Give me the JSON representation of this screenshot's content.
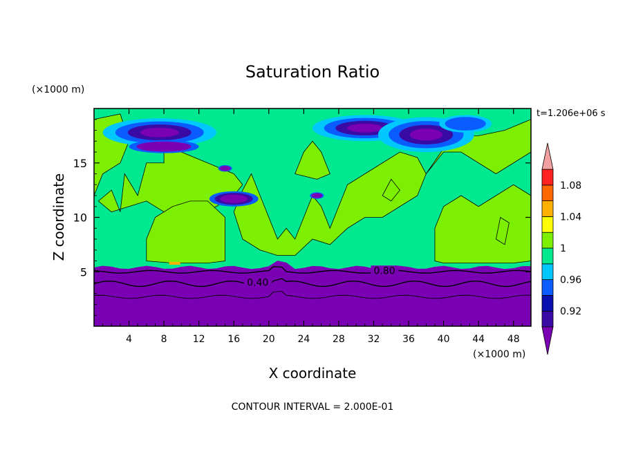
{
  "chart_data": {
    "type": "contour",
    "title": "Saturation Ratio",
    "time_label": "t=1.206e+06 s",
    "xlabel": "X coordinate",
    "ylabel": "Z coordinate",
    "x_unit": "(×1000 m)",
    "y_unit": "(×1000 m)",
    "xlim": [
      0,
      50
    ],
    "ylim": [
      0,
      20
    ],
    "x_ticks": [
      4,
      8,
      12,
      16,
      20,
      24,
      28,
      32,
      36,
      40,
      44,
      48
    ],
    "x_tick_labels": [
      "4",
      "8",
      "12",
      "16",
      "20",
      "24",
      "28",
      "32",
      "36",
      "40",
      "44",
      "48"
    ],
    "y_ticks": [
      5,
      10,
      15
    ],
    "y_tick_labels": [
      "5",
      "10",
      "15"
    ],
    "contour_labels": [
      {
        "text": "0.40",
        "x": 17.5,
        "y": 3.9
      },
      {
        "text": "0.80",
        "x": 32,
        "y": 5.0
      }
    ],
    "contour_interval_text": "CONTOUR INTERVAL = 2.000E-01",
    "colorbar": {
      "levels": [
        0.9,
        0.92,
        0.94,
        0.96,
        0.98,
        1.0,
        1.02,
        1.04,
        1.06,
        1.08,
        1.1
      ],
      "tick_values": [
        0.92,
        0.96,
        1.0,
        1.04,
        1.08
      ],
      "tick_labels": [
        "0.92",
        "0.96",
        "1",
        "1.04",
        "1.08"
      ],
      "colors": [
        "#3a0aa5",
        "#0a10b0",
        "#0a5cff",
        "#00c8ff",
        "#00e890",
        "#7cf000",
        "#ffff00",
        "#ffb000",
        "#ff6600",
        "#ff2020"
      ],
      "under_color": "#7a00b4",
      "over_color": "#f4a0a0"
    },
    "field_colors": {
      "lowest": "#7a00b4",
      "dark_blue": "#3a0aa5",
      "blue": "#0a5cff",
      "cyan": "#00c8ff",
      "teal": "#00e890",
      "green": "#7cf000",
      "orange": "#ffb000"
    }
  }
}
